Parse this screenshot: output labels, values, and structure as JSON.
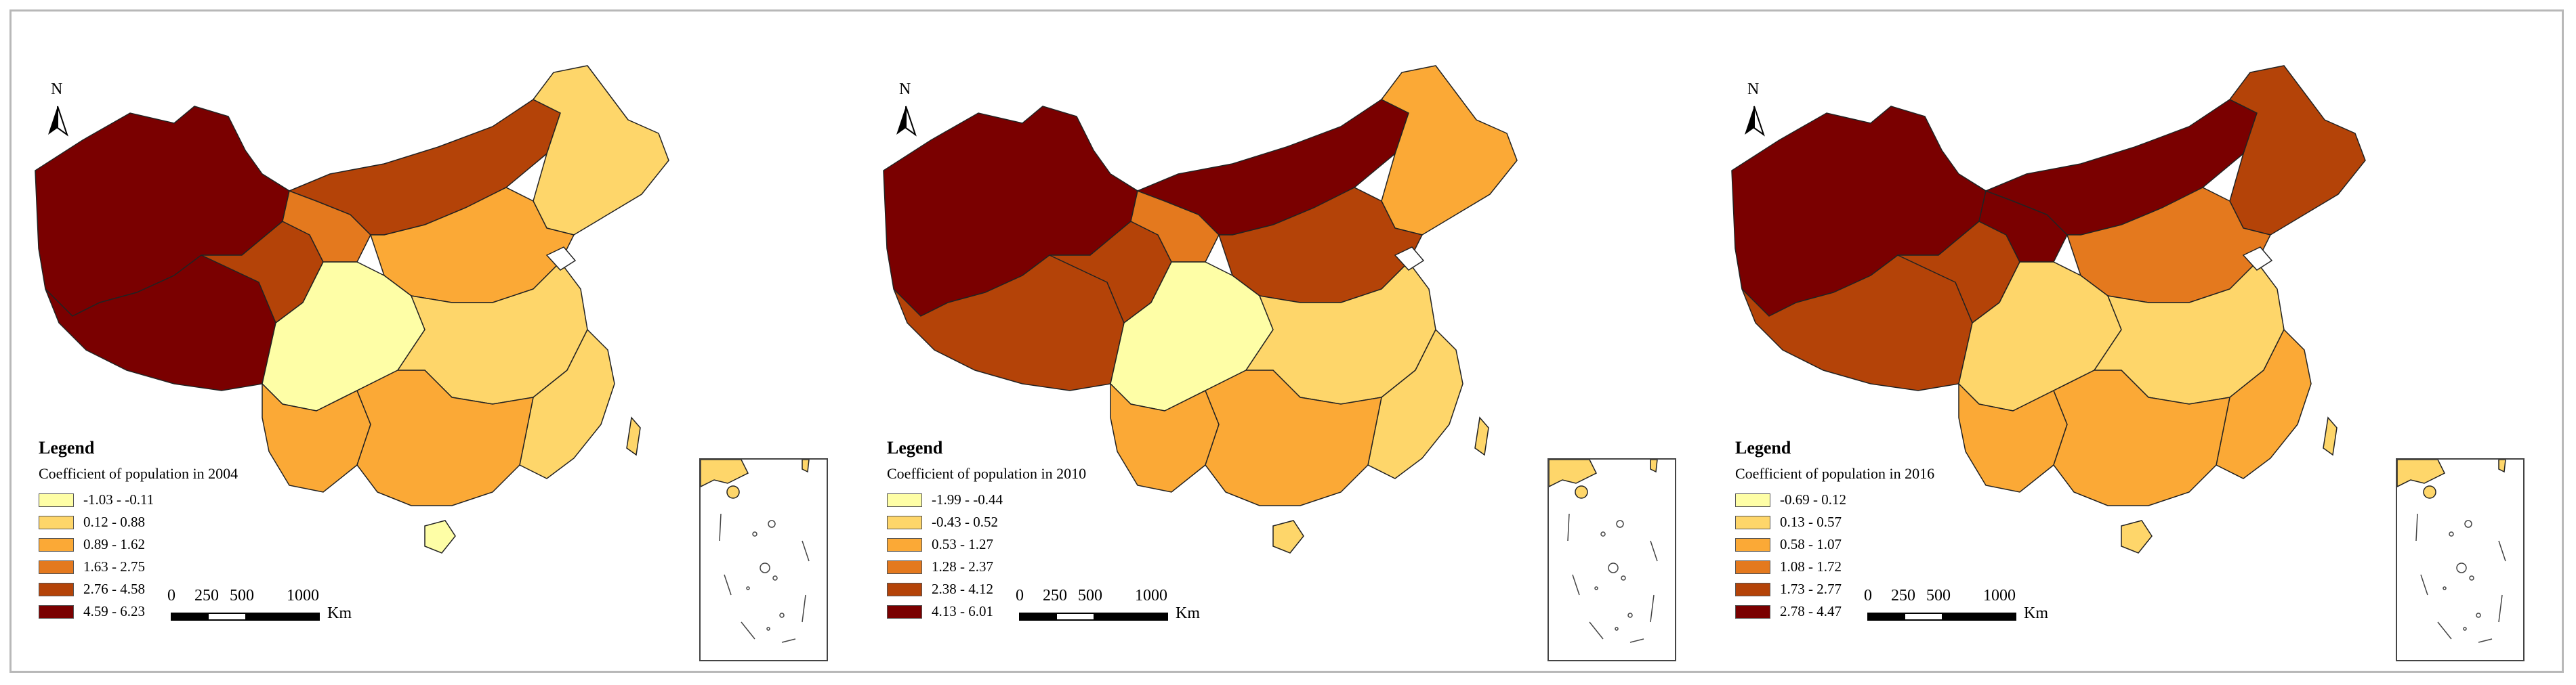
{
  "panels": [
    {
      "north_label": "N",
      "legend_title": "Legend",
      "legend_subtitle": "Coefficient of population in 2004",
      "classes": [
        {
          "range": "-1.03 - -0.11",
          "color": "#fefea6"
        },
        {
          "range": "0.12 - 0.88",
          "color": "#fed66a"
        },
        {
          "range": "0.89 - 1.62",
          "color": "#fba936"
        },
        {
          "range": "1.63 - 2.75",
          "color": "#e4791e"
        },
        {
          "range": "2.76 - 4.58",
          "color": "#b44308"
        },
        {
          "range": "4.59 - 6.23",
          "color": "#7a0000"
        }
      ],
      "scale_labels": [
        "0",
        "250",
        "500",
        "1000"
      ],
      "scale_unit": "Km",
      "region_colors": {
        "northwest": "#7a0000",
        "tibet": "#7a0000",
        "qinghai": "#b44308",
        "gansu": "#e4791e",
        "inner_mongolia": "#b44308",
        "northeast": "#fed66a",
        "north": "#fba936",
        "sichuan": "#fefea6",
        "central": "#fed66a",
        "south": "#fba936",
        "southeast": "#fed66a",
        "yunnan": "#fba936",
        "hainan": "#fefea6",
        "taiwan": "#fed66a"
      }
    },
    {
      "north_label": "N",
      "legend_title": "Legend",
      "legend_subtitle": "Coefficient of population in 2010",
      "classes": [
        {
          "range": "-1.99 - -0.44",
          "color": "#fefea6"
        },
        {
          "range": "-0.43 - 0.52",
          "color": "#fed66a"
        },
        {
          "range": "0.53 - 1.27",
          "color": "#fba936"
        },
        {
          "range": "1.28 - 2.37",
          "color": "#e4791e"
        },
        {
          "range": "2.38 - 4.12",
          "color": "#b44308"
        },
        {
          "range": "4.13 - 6.01",
          "color": "#7a0000"
        }
      ],
      "scale_labels": [
        "0",
        "250",
        "500",
        "1000"
      ],
      "scale_unit": "Km",
      "region_colors": {
        "northwest": "#7a0000",
        "tibet": "#b44308",
        "qinghai": "#b44308",
        "gansu": "#e4791e",
        "inner_mongolia": "#7a0000",
        "northeast": "#fba936",
        "north": "#b44308",
        "sichuan": "#fefea6",
        "central": "#fed66a",
        "south": "#fba936",
        "southeast": "#fed66a",
        "yunnan": "#fba936",
        "hainan": "#fed66a",
        "taiwan": "#fed66a"
      }
    },
    {
      "north_label": "N",
      "legend_title": "Legend",
      "legend_subtitle": "Coefficient of population in 2016",
      "classes": [
        {
          "range": "-0.69 - 0.12",
          "color": "#fefea6"
        },
        {
          "range": "0.13 - 0.57",
          "color": "#fed66a"
        },
        {
          "range": "0.58 - 1.07",
          "color": "#fba936"
        },
        {
          "range": "1.08 - 1.72",
          "color": "#e4791e"
        },
        {
          "range": "1.73 - 2.77",
          "color": "#b44308"
        },
        {
          "range": "2.78 - 4.47",
          "color": "#7a0000"
        }
      ],
      "scale_labels": [
        "0",
        "250",
        "500",
        "1000"
      ],
      "scale_unit": "Km",
      "region_colors": {
        "northwest": "#7a0000",
        "tibet": "#b44308",
        "qinghai": "#b44308",
        "gansu": "#7a0000",
        "inner_mongolia": "#7a0000",
        "northeast": "#b44308",
        "north": "#e4791e",
        "sichuan": "#fed66a",
        "central": "#fed66a",
        "south": "#fba936",
        "southeast": "#fba936",
        "yunnan": "#fba936",
        "hainan": "#fed66a",
        "taiwan": "#fed66a"
      }
    }
  ]
}
